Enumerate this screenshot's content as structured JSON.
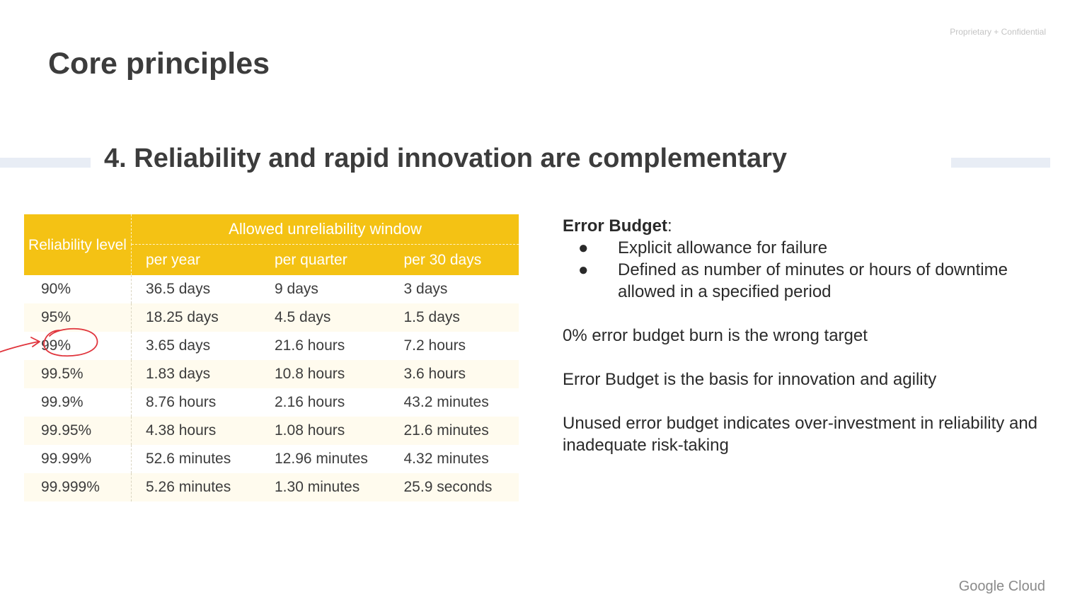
{
  "header": {
    "confidential": "Proprietary + Confidential",
    "title": "Core principles",
    "subtitle": "4. Reliability and rapid innovation are complementary"
  },
  "table": {
    "level_header": "Reliability level",
    "window_header": "Allowed unreliability window",
    "columns": [
      "per year",
      "per quarter",
      "per 30 days"
    ],
    "rows": [
      {
        "level": "90%",
        "year": "36.5 days",
        "quarter": "9 days",
        "month": "3 days"
      },
      {
        "level": "95%",
        "year": "18.25 days",
        "quarter": "4.5 days",
        "month": "1.5 days"
      },
      {
        "level": "99%",
        "year": "3.65 days",
        "quarter": "21.6 hours",
        "month": "7.2 hours"
      },
      {
        "level": "99.5%",
        "year": "1.83 days",
        "quarter": "10.8 hours",
        "month": "3.6 hours"
      },
      {
        "level": "99.9%",
        "year": "8.76 hours",
        "quarter": "2.16 hours",
        "month": "43.2 minutes"
      },
      {
        "level": "99.95%",
        "year": "4.38 hours",
        "quarter": "1.08 hours",
        "month": "21.6 minutes"
      },
      {
        "level": "99.99%",
        "year": "52.6 minutes",
        "quarter": "12.96 minutes",
        "month": "4.32 minutes"
      },
      {
        "level": "99.999%",
        "year": "5.26 minutes",
        "quarter": "1.30 minutes",
        "month": "25.9 seconds"
      }
    ],
    "header_color": "#f4c214",
    "alt_row_color": "#fffbee",
    "annotation_color": "#e0343c"
  },
  "error_budget": {
    "heading": "Error Budget",
    "heading_suffix": ":",
    "bullet_glyph": "●",
    "bullets": [
      "Explicit allowance for failure",
      "Defined as number of minutes or hours of downtime allowed in a specified period"
    ],
    "paragraphs": [
      "0% error budget burn is the wrong target",
      "Error Budget is the basis for innovation and agility",
      "Unused error budget indicates over-investment in reliability and inadequate risk-taking"
    ]
  },
  "footer": {
    "brand": "Google Cloud"
  }
}
